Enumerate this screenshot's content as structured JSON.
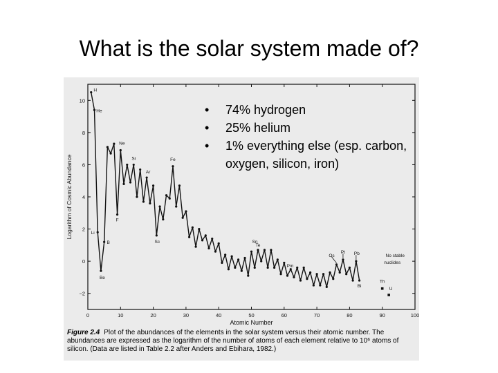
{
  "slide": {
    "title": "What is the solar system made of?",
    "bullets": [
      "74% hydrogen",
      "25% helium",
      "1% everything else (esp. carbon, oxygen, silicon, iron)"
    ],
    "bullet_glyph": "•"
  },
  "caption": {
    "label": "Figure 2.4",
    "text": "Plot of the abundances of the elements in the solar system versus their atomic number. The abundances are expressed as the logarithm of the number of atoms of each element relative to 10⁶ atoms of silicon. (Data are listed in Table 2.2 after Anders and Ebihara, 1982.)"
  },
  "chart_data": {
    "type": "line",
    "title": "",
    "xlabel": "Atomic Number",
    "ylabel": "Logarithm of Cosmic Abundance",
    "xlim": [
      0,
      100
    ],
    "ylim": [
      -3,
      11
    ],
    "xticks": [
      0,
      10,
      20,
      30,
      40,
      50,
      60,
      70,
      80,
      90,
      100
    ],
    "yticks": [
      -2,
      0,
      2,
      4,
      6,
      8,
      10
    ],
    "ytick_labels": [
      "−2",
      "0",
      "2",
      "4",
      "6",
      "8",
      "10"
    ],
    "grid": false,
    "series": [
      {
        "x": [
          1,
          2,
          3,
          4,
          5,
          6,
          7,
          8,
          9,
          10,
          11,
          12,
          13,
          14,
          15,
          16,
          17,
          18,
          19,
          20,
          21,
          22,
          23,
          24,
          25,
          26,
          27,
          28,
          29,
          30,
          31,
          32,
          33,
          34,
          35,
          36,
          37,
          38,
          39,
          40,
          41,
          42,
          43,
          44,
          45,
          46,
          47,
          48,
          49,
          50,
          51,
          52,
          53,
          54,
          55,
          56,
          57,
          58,
          59,
          60,
          61,
          62,
          63,
          64,
          65,
          66,
          67,
          68,
          69,
          70,
          71,
          72,
          73,
          74,
          75,
          76,
          77,
          78,
          79,
          80,
          81,
          82,
          83
        ],
        "y": [
          10.5,
          9.4,
          1.8,
          -0.6,
          1.2,
          7.1,
          6.7,
          7.3,
          2.9,
          6.9,
          4.8,
          6.0,
          4.9,
          6.0,
          4.0,
          5.7,
          3.7,
          5.2,
          3.6,
          4.7,
          1.6,
          3.4,
          2.6,
          4.1,
          3.9,
          5.9,
          3.4,
          4.7,
          2.7,
          3.1,
          1.5,
          2.1,
          0.9,
          2.0,
          1.3,
          1.6,
          0.8,
          1.4,
          0.6,
          1.1,
          -0.1,
          0.4,
          -0.5,
          0.3,
          -0.4,
          0.1,
          -0.6,
          0.2,
          -0.9,
          0.6,
          -0.4,
          0.7,
          0.0,
          0.7,
          -0.4,
          0.7,
          -0.4,
          0.1,
          -0.8,
          -0.1,
          -0.9,
          -0.5,
          -1.0,
          -0.4,
          -1.2,
          -0.4,
          -1.1,
          -0.7,
          -1.5,
          -0.8,
          -1.5,
          -0.8,
          -1.6,
          -0.7,
          -1.1,
          -0.2,
          -0.7,
          0.1,
          -0.8,
          -0.4,
          -1.2,
          0.0,
          -1.2
        ]
      },
      {
        "x": [
          90,
          92
        ],
        "y": [
          -1.7,
          -2.1
        ]
      }
    ],
    "annotations": [
      {
        "text": "H",
        "x": 1
      },
      {
        "text": "He",
        "x": 2
      },
      {
        "text": "Li",
        "x": 3
      },
      {
        "text": "Be",
        "x": 4
      },
      {
        "text": "B",
        "x": 5
      },
      {
        "text": "Ne",
        "x": 10
      },
      {
        "text": "Si",
        "x": 14
      },
      {
        "text": "F",
        "x": 9
      },
      {
        "text": "Ar",
        "x": 18
      },
      {
        "text": "Sc",
        "x": 21
      },
      {
        "text": "Fe",
        "x": 26
      },
      {
        "text": "Te",
        "x": 52
      },
      {
        "text": "Sn",
        "x": 50
      },
      {
        "text": "Pm",
        "x": 61
      },
      {
        "text": "Os",
        "x": 76
      },
      {
        "text": "Pt",
        "x": 78
      },
      {
        "text": "Pb",
        "x": 82
      },
      {
        "text": "Bi",
        "x": 83
      },
      {
        "text": "Th",
        "x": 90
      },
      {
        "text": "U",
        "x": 92
      },
      {
        "text": "No stable",
        "x": 88
      },
      {
        "text": "nuclides",
        "x": 88
      }
    ]
  }
}
